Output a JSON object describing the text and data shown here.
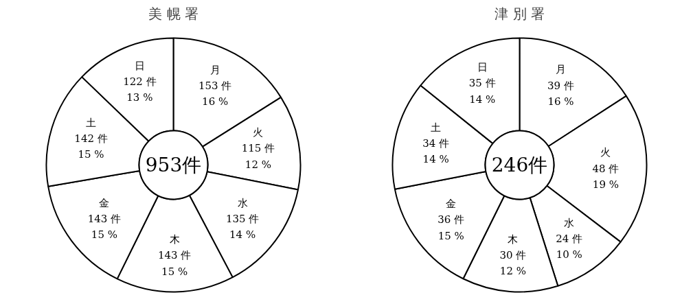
{
  "chart_data": [
    {
      "type": "donut",
      "title": "美 幌 署",
      "categories": [
        "月",
        "火",
        "水",
        "木",
        "金",
        "土",
        "日"
      ],
      "values": [
        153,
        115,
        135,
        143,
        143,
        142,
        122
      ],
      "colors": [
        "#ffffff",
        "#ffffff",
        "#ffffff",
        "#ffffff",
        "#ffffff",
        "#ffffff",
        "#ffffff"
      ],
      "value_labels": [
        "153 件\n16 %",
        "115 件\n12 %",
        "135 件\n14 %",
        "143 件\n15 %",
        "143 件\n15 %",
        "142 件\n15 %",
        "122 件\n13 %"
      ],
      "annotations": [
        "953件"
      ]
    },
    {
      "type": "donut",
      "title": "津 別 署",
      "categories": [
        "月",
        "火",
        "水",
        "木",
        "金",
        "土",
        "日"
      ],
      "values": [
        39,
        48,
        24,
        30,
        36,
        34,
        35
      ],
      "colors": [
        "#ffffff",
        "#ffffff",
        "#ffffff",
        "#ffffff",
        "#ffffff",
        "#ffffff",
        "#ffffff"
      ],
      "value_labels": [
        "39 件\n16 %",
        "48 件\n19 %",
        "24 件\n10 %",
        "30 件\n12 %",
        "36 件\n15 %",
        "34 件\n14 %",
        "35 件\n14 %"
      ],
      "annotations": [
        "246件"
      ]
    }
  ]
}
